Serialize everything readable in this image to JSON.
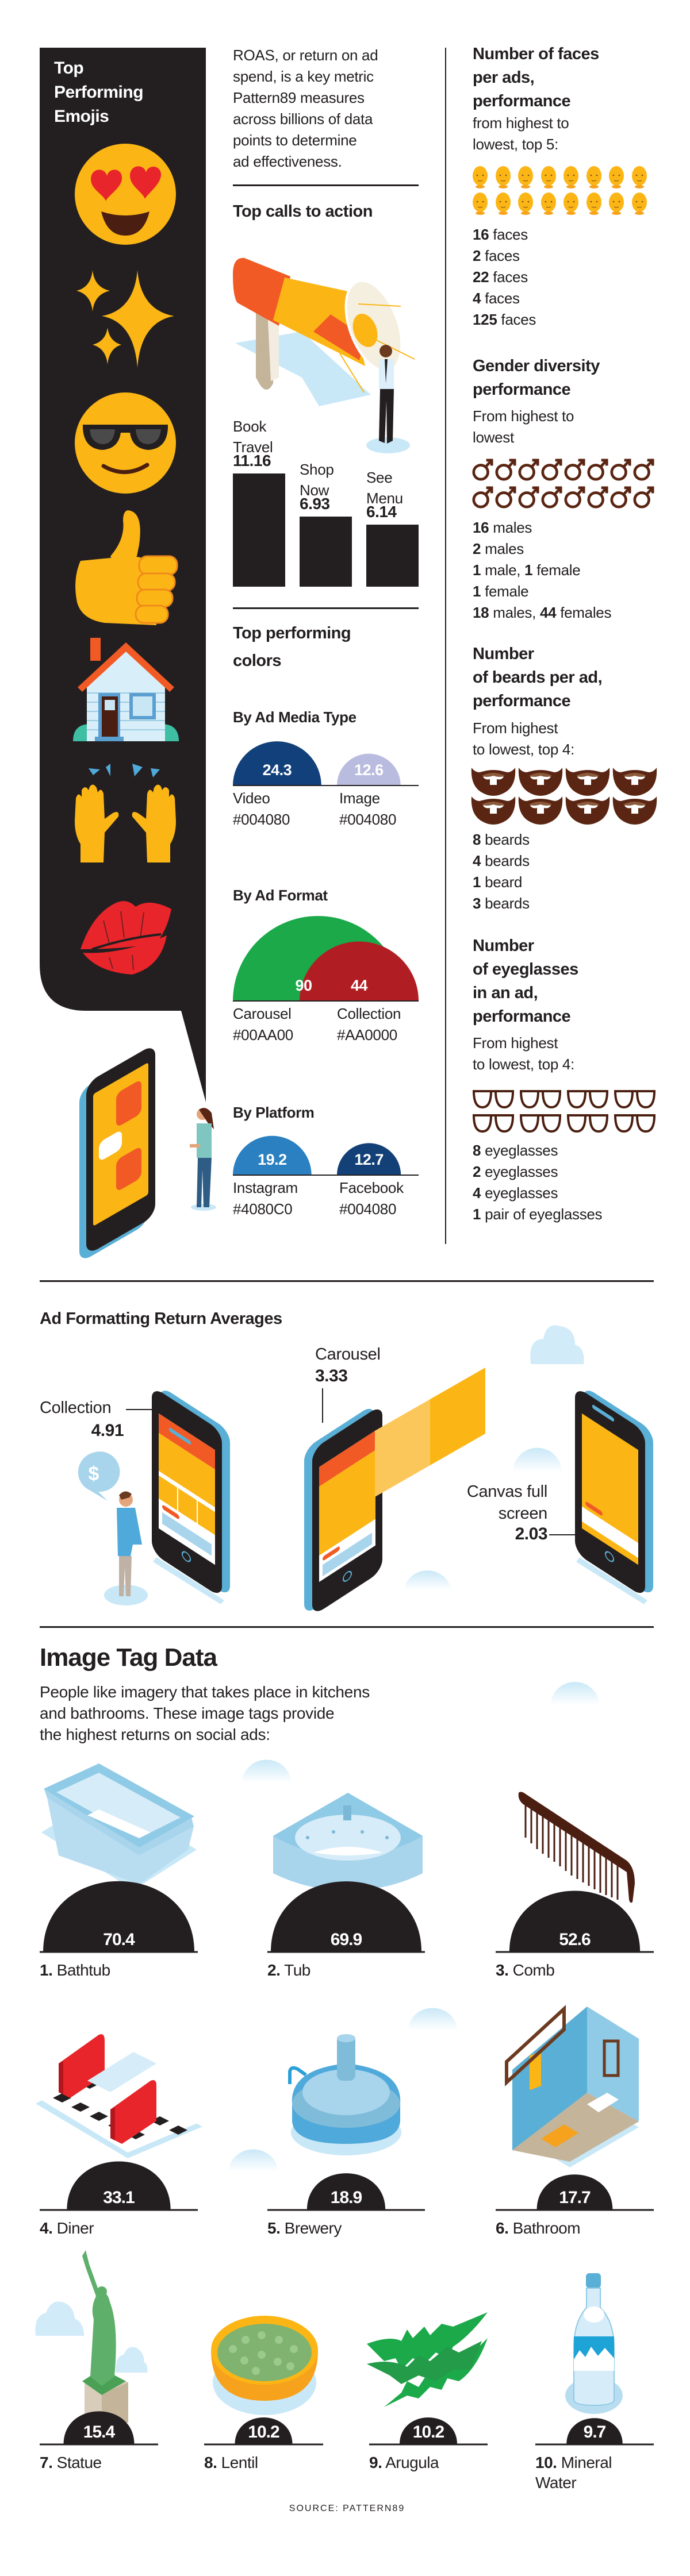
{
  "emoji_panel": {
    "title_lines": [
      "Top",
      "Performing",
      "Emojis"
    ],
    "emojis": [
      "heart-eyes",
      "sparkles",
      "sunglasses",
      "thumbs-up",
      "house",
      "raised-hands",
      "kiss-lips"
    ],
    "panel_color": "#231F20",
    "emoji_color": "#FBB616"
  },
  "intro": {
    "lines": [
      "ROAS, or return on ad",
      "spend, is a key metric",
      "Pattern89 measures",
      "across billions of data",
      "points to determine",
      "ad effectiveness."
    ]
  },
  "colors_section": {
    "title_lines": [
      "Top performing",
      "colors"
    ]
  },
  "faces": {
    "title_lines": [
      "Number of faces",
      "per ads,",
      "performance"
    ],
    "sub_lines": [
      "from highest to",
      "lowest, top 5:"
    ],
    "icon": "face-icon",
    "icon_count": 16,
    "items": [
      [
        "16",
        " faces"
      ],
      [
        "2",
        " faces"
      ],
      [
        "22",
        " faces"
      ],
      [
        "4",
        " faces"
      ],
      [
        "125",
        " faces"
      ]
    ]
  },
  "gender": {
    "title_lines": [
      "Gender diversity",
      "performance"
    ],
    "sub_lines": [
      "From highest to",
      "lowest"
    ],
    "icon": "male-symbol-icon",
    "icon_count": 16,
    "items": [
      [
        "16",
        " males"
      ],
      [
        "2",
        " males"
      ],
      [
        "1",
        " male, ",
        "1",
        " female"
      ],
      [
        "1",
        " female"
      ],
      [
        "18",
        " males, ",
        "44",
        " females"
      ]
    ]
  },
  "beards": {
    "title_lines": [
      "Number",
      "of beards per ad,",
      "performance"
    ],
    "sub_lines": [
      "From highest",
      "to lowest, top 4:"
    ],
    "icon": "beard-icon",
    "icon_count": 8,
    "items": [
      [
        "8",
        " beards"
      ],
      [
        "4",
        " beards"
      ],
      [
        "1",
        " beard"
      ],
      [
        "3",
        " beards"
      ]
    ]
  },
  "eyeglasses": {
    "title_lines": [
      "Number",
      "of eyeglasses",
      "in an ad,",
      "performance"
    ],
    "sub_lines": [
      "From highest",
      "to lowest, top 4:"
    ],
    "icon": "eyeglasses-icon",
    "icon_count": 8,
    "items": [
      [
        "8",
        " eyeglasses"
      ],
      [
        "2",
        " eyeglasses"
      ],
      [
        "4",
        " eyeglasses"
      ],
      [
        "1",
        " pair of eyeglasses"
      ]
    ]
  },
  "ad_formatting": {
    "title": "Ad Formatting Return Averages"
  },
  "image_tags": {
    "title": "Image Tag Data",
    "intro_lines": [
      "People like imagery that takes place in kitchens",
      "and bathrooms. These image tags provide",
      "the highest returns on social ads:"
    ]
  },
  "source": "SOURCE: PATTERN89",
  "chart_data": [
    {
      "type": "bar",
      "title": "Top calls to action",
      "categories": [
        "Book Travel",
        "Shop Now",
        "See Menu"
      ],
      "values": [
        11.16,
        6.93,
        6.14
      ],
      "labels": [
        "11.16",
        "6.93",
        "6.14"
      ],
      "bar_color": "#231F20"
    },
    {
      "type": "bar",
      "title": "By Ad Media Type",
      "categories": [
        "Video",
        "Image"
      ],
      "values": [
        24.3,
        12.6
      ],
      "labels": [
        "24.3",
        "12.6"
      ],
      "hex_labels": [
        "#004080",
        "#004080"
      ],
      "fills": [
        "#12407A",
        "#B9BCDF"
      ]
    },
    {
      "type": "bar",
      "title": "By Ad Format",
      "categories": [
        "Carousel",
        "Collection"
      ],
      "values": [
        90,
        44
      ],
      "labels": [
        "90",
        "44"
      ],
      "hex_labels": [
        "#00AA00",
        "#AA0000"
      ],
      "fills": [
        "#1BA94A",
        "#B01E24"
      ]
    },
    {
      "type": "bar",
      "title": "By Platform",
      "categories": [
        "Instagram",
        "Facebook"
      ],
      "values": [
        19.2,
        12.7
      ],
      "labels": [
        "19.2",
        "12.7"
      ],
      "hex_labels": [
        "#4080C0",
        "#004080"
      ],
      "fills": [
        "#2A80C0",
        "#134077"
      ]
    },
    {
      "type": "bar",
      "title": "Ad Formatting Return Averages",
      "categories": [
        "Collection",
        "Carousel",
        "Canvas full screen"
      ],
      "values": [
        4.91,
        3.33,
        2.03
      ],
      "labels": [
        "4.91",
        "3.33",
        "2.03"
      ]
    },
    {
      "type": "bar",
      "title": "Image Tag Data",
      "categories": [
        "Bathtub",
        "Tub",
        "Comb",
        "Diner",
        "Brewery",
        "Bathroom",
        "Statue",
        "Lentil",
        "Arugula",
        "Mineral Water"
      ],
      "ranks": [
        "1.",
        "2.",
        "3.",
        "4.",
        "5.",
        "6.",
        "7.",
        "8.",
        "9.",
        "10."
      ],
      "values": [
        70.4,
        69.9,
        52.6,
        33.1,
        18.9,
        17.7,
        15.4,
        10.2,
        10.2,
        9.7
      ],
      "labels": [
        "70.4",
        "69.9",
        "52.6",
        "33.1",
        "18.9",
        "17.7",
        "15.4",
        "10.2",
        "10.2",
        "9.7"
      ],
      "dome_color": "#231F20"
    }
  ]
}
